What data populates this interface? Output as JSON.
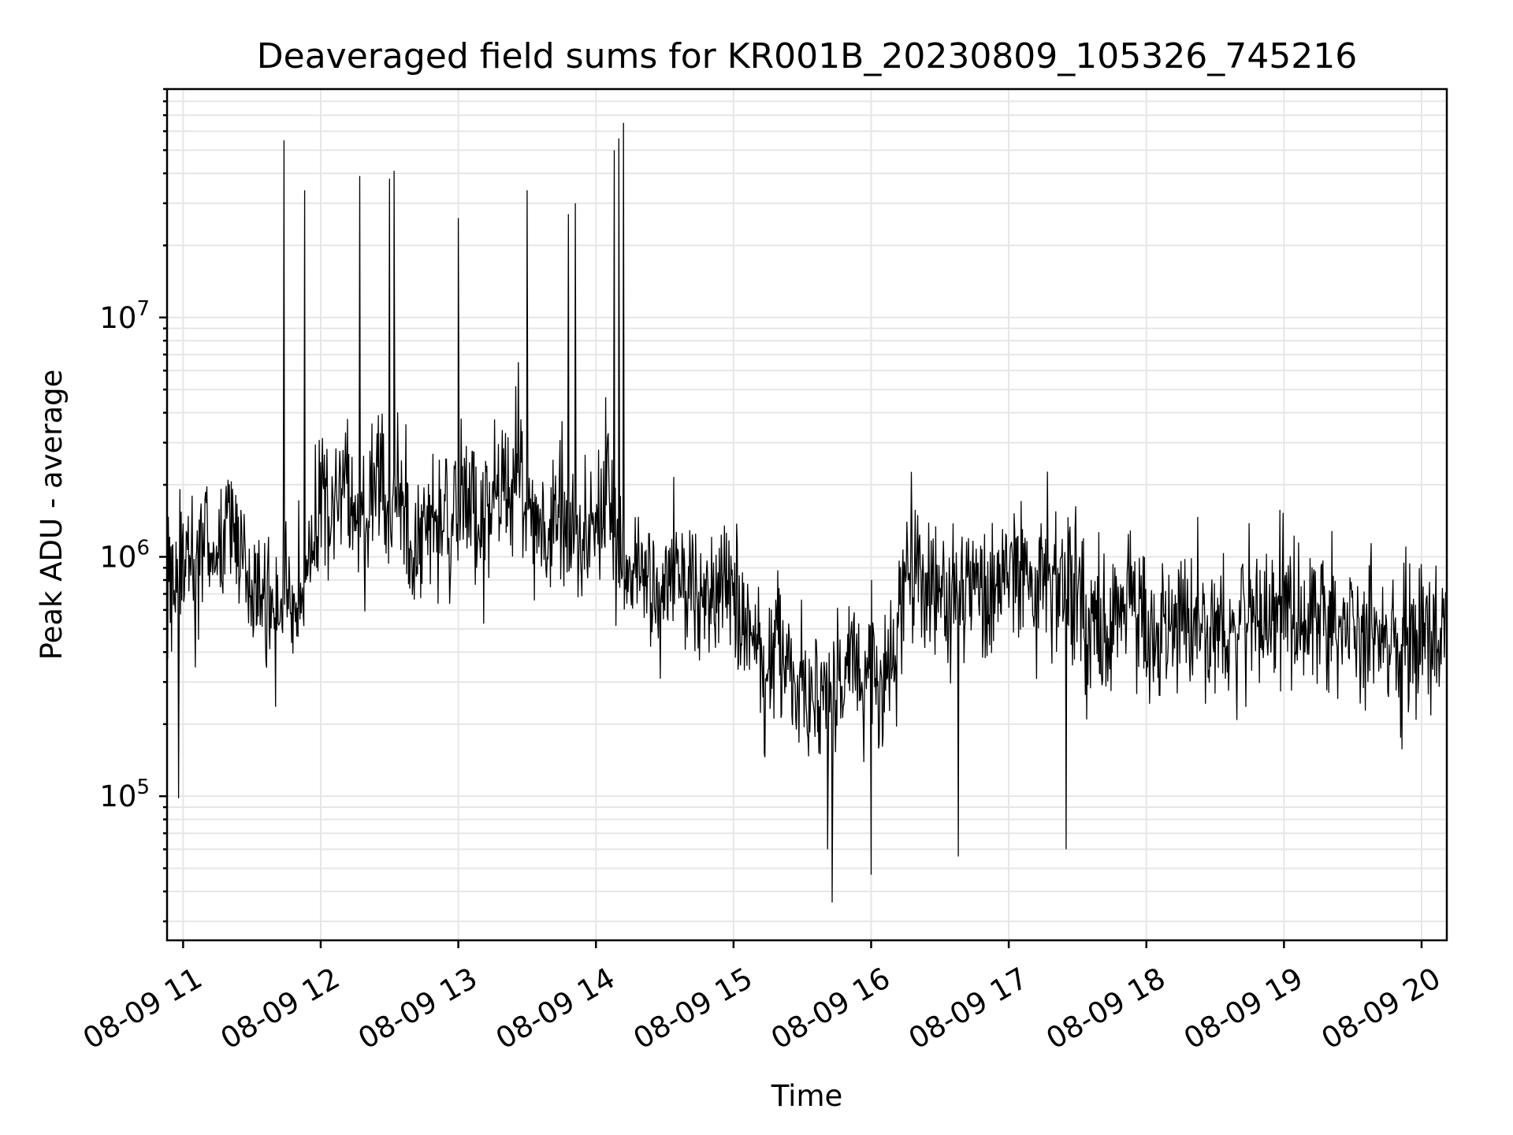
{
  "chart_data": {
    "type": "line",
    "title": "Deaveraged field sums for KR001B_20230809_105326_745216",
    "xlabel": "Time",
    "ylabel": "Peak ADU - average",
    "yscale": "log",
    "ylim": [
      25000,
      90000000
    ],
    "xlim": [
      "08-09 10:53",
      "08-09 20:11"
    ],
    "x_ticks": [
      "08-09 11",
      "08-09 12",
      "08-09 13",
      "08-09 14",
      "08-09 15",
      "08-09 16",
      "08-09 17",
      "08-09 18",
      "08-09 19",
      "08-09 20"
    ],
    "y_ticks": [
      {
        "base": "10",
        "exp": "5",
        "value": 100000
      },
      {
        "base": "10",
        "exp": "6",
        "value": 1000000
      },
      {
        "base": "10",
        "exp": "7",
        "value": 10000000
      }
    ],
    "grid": true,
    "line_color": "#000000",
    "series": [
      {
        "x": [
          "08-09 10:55",
          "08-09 11:00",
          "08-09 11:05",
          "08-09 11:10",
          "08-09 11:15",
          "08-09 11:20",
          "08-09 11:25",
          "08-09 11:30",
          "08-09 11:35",
          "08-09 11:40",
          "08-09 11:45",
          "08-09 11:50",
          "08-09 11:55",
          "08-09 12:00",
          "08-09 12:05",
          "08-09 12:10",
          "08-09 12:15",
          "08-09 12:20",
          "08-09 12:25",
          "08-09 12:30",
          "08-09 12:35",
          "08-09 12:40",
          "08-09 12:45",
          "08-09 12:50",
          "08-09 12:55",
          "08-09 13:00",
          "08-09 13:05",
          "08-09 13:10",
          "08-09 13:15",
          "08-09 13:20",
          "08-09 13:25",
          "08-09 13:30",
          "08-09 13:35",
          "08-09 13:40",
          "08-09 13:45",
          "08-09 13:50",
          "08-09 13:55",
          "08-09 14:00",
          "08-09 14:05",
          "08-09 14:10",
          "08-09 14:15",
          "08-09 14:20",
          "08-09 14:25",
          "08-09 14:30",
          "08-09 14:35",
          "08-09 14:40",
          "08-09 14:45",
          "08-09 14:50",
          "08-09 14:55",
          "08-09 15:00",
          "08-09 15:05",
          "08-09 15:10",
          "08-09 15:15",
          "08-09 15:20",
          "08-09 15:25",
          "08-09 15:30",
          "08-09 15:35",
          "08-09 15:40",
          "08-09 15:45",
          "08-09 15:50",
          "08-09 15:55",
          "08-09 16:00",
          "08-09 16:05",
          "08-09 16:10",
          "08-09 16:15",
          "08-09 16:20",
          "08-09 16:25",
          "08-09 16:30",
          "08-09 16:35",
          "08-09 16:40",
          "08-09 16:45",
          "08-09 16:50",
          "08-09 16:55",
          "08-09 17:00",
          "08-09 17:05",
          "08-09 17:10",
          "08-09 17:15",
          "08-09 17:20",
          "08-09 17:25",
          "08-09 17:30",
          "08-09 17:35",
          "08-09 17:40",
          "08-09 17:45",
          "08-09 17:50",
          "08-09 17:55",
          "08-09 18:00",
          "08-09 18:05",
          "08-09 18:10",
          "08-09 18:15",
          "08-09 18:20",
          "08-09 18:25",
          "08-09 18:30",
          "08-09 18:35",
          "08-09 18:40",
          "08-09 18:45",
          "08-09 18:50",
          "08-09 18:55",
          "08-09 19:00",
          "08-09 19:05",
          "08-09 19:10",
          "08-09 19:15",
          "08-09 19:20",
          "08-09 19:25",
          "08-09 19:30",
          "08-09 19:35",
          "08-09 19:40",
          "08-09 19:45",
          "08-09 19:50",
          "08-09 19:55",
          "08-09 20:00",
          "08-09 20:05",
          "08-09 20:10"
        ],
        "values": [
          700000,
          1000000,
          800000,
          1200000,
          900000,
          1500000,
          1100000,
          600000,
          700000,
          500000,
          800000,
          600000,
          1000000,
          1800000,
          1400000,
          2000000,
          1600000,
          1300000,
          2200000,
          1500000,
          1700000,
          1200000,
          1100000,
          1400000,
          1600000,
          1500000,
          1800000,
          1200000,
          1600000,
          2000000,
          2500000,
          1400000,
          1300000,
          1200000,
          1600000,
          1100000,
          1400000,
          1300000,
          2200000,
          1000000,
          900000,
          1000000,
          800000,
          700000,
          900000,
          700000,
          600000,
          650000,
          750000,
          600000,
          550000,
          400000,
          350000,
          450000,
          300000,
          280000,
          250000,
          260000,
          300000,
          350000,
          320000,
          300000,
          280000,
          320000,
          900000,
          850000,
          800000,
          700000,
          650000,
          750000,
          800000,
          700000,
          750000,
          800000,
          1000000,
          700000,
          800000,
          750000,
          800000,
          650000,
          500000,
          600000,
          550000,
          500000,
          600000,
          550000,
          450000,
          500000,
          550000,
          600000,
          500000,
          550000,
          450000,
          500000,
          600000,
          550000,
          500000,
          650000,
          550000,
          500000,
          600000,
          550000,
          450000,
          550000,
          500000,
          600000,
          450000,
          400000,
          500000,
          550000,
          450000,
          500000
        ],
        "spikes": [
          {
            "x": "08-09 11:44",
            "value": 55000000
          },
          {
            "x": "08-09 11:53",
            "value": 34000000
          },
          {
            "x": "08-09 12:17",
            "value": 39000000
          },
          {
            "x": "08-09 12:30",
            "value": 38000000
          },
          {
            "x": "08-09 12:32",
            "value": 41000000
          },
          {
            "x": "08-09 13:00",
            "value": 26000000
          },
          {
            "x": "08-09 13:30",
            "value": 34000000
          },
          {
            "x": "08-09 13:48",
            "value": 27000000
          },
          {
            "x": "08-09 13:51",
            "value": 30000000
          },
          {
            "x": "08-09 14:08",
            "value": 50000000
          },
          {
            "x": "08-09 14:10",
            "value": 56000000
          },
          {
            "x": "08-09 14:12",
            "value": 65000000
          }
        ],
        "dips": [
          {
            "x": "08-09 10:58",
            "value": 98000
          },
          {
            "x": "08-09 15:41",
            "value": 60000
          },
          {
            "x": "08-09 15:43",
            "value": 36000
          },
          {
            "x": "08-09 16:00",
            "value": 47000
          },
          {
            "x": "08-09 16:38",
            "value": 56000
          },
          {
            "x": "08-09 17:25",
            "value": 60000
          }
        ]
      }
    ]
  }
}
